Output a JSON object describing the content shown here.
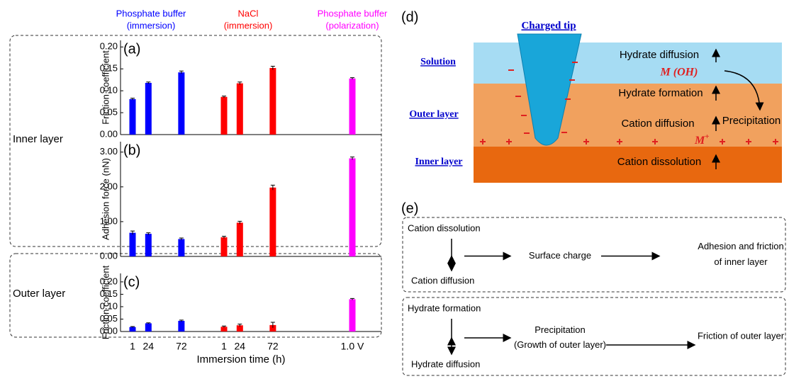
{
  "x_groups": [
    {
      "name": "Phosphate buffer",
      "condition": "(immersion)",
      "color": "#0000ff",
      "categories": [
        "1",
        "24",
        "72"
      ]
    },
    {
      "name": "NaCl",
      "condition": "(immersion)",
      "color": "#ff0000",
      "categories": [
        "1",
        "24",
        "72"
      ]
    },
    {
      "name": "Phosphate buffer",
      "condition": "(polarization)",
      "color": "#ff00ff",
      "categories": [
        "1.0 V"
      ]
    }
  ],
  "xlabel": "Immersion time (h)",
  "layer_labels": [
    "Inner layer",
    "Outer layer"
  ],
  "chart_data": [
    {
      "type": "bar",
      "label": "(a)",
      "ylabel": "Friction coefficient",
      "ylim": [
        0,
        0.215
      ],
      "yticks": [
        {
          "value": 0,
          "label": "0.00"
        },
        0.05,
        {
          "value": 0.1,
          "label": "0.10"
        },
        0.15,
        {
          "value": 0.2,
          "label": "0.20"
        }
      ],
      "series": [
        {
          "values": [
            0.081,
            0.118,
            0.142
          ],
          "errors": [
            0.002,
            0.002,
            0.003
          ]
        },
        {
          "values": [
            0.086,
            0.117,
            0.152
          ],
          "errors": [
            0.002,
            0.003,
            0.004
          ]
        },
        {
          "values": [
            0.128
          ],
          "errors": [
            0.002
          ]
        }
      ]
    },
    {
      "type": "bar",
      "label": "(b)",
      "ylabel": "Adhesion force (nN)",
      "ylim": [
        0,
        3.3
      ],
      "yticks": [
        {
          "value": 0,
          "label": "0.00"
        },
        {
          "value": 1,
          "label": "1.00"
        },
        {
          "value": 2,
          "label": "2.00"
        },
        {
          "value": 3,
          "label": "3.00"
        }
      ],
      "series": [
        {
          "values": [
            0.68,
            0.65,
            0.5
          ],
          "errors": [
            0.05,
            0.03,
            0.03
          ]
        },
        {
          "values": [
            0.55,
            0.97,
            1.98
          ],
          "errors": [
            0.03,
            0.04,
            0.07
          ]
        },
        {
          "values": [
            2.82
          ],
          "errors": [
            0.04
          ]
        }
      ]
    },
    {
      "type": "bar",
      "label": "(c)",
      "ylabel": "Friction coefficient",
      "ylim": [
        0,
        0.234
      ],
      "yticks": [
        {
          "value": 0,
          "label": "0.00"
        },
        0.05,
        {
          "value": 0.1,
          "label": "0.10"
        },
        0.15,
        {
          "value": 0.2,
          "label": "0.20"
        }
      ],
      "series": [
        {
          "values": [
            0.018,
            0.033,
            0.043
          ],
          "errors": [
            0.002,
            0.002,
            0.003
          ]
        },
        {
          "values": [
            0.019,
            0.025,
            0.026
          ],
          "errors": [
            0.003,
            0.005,
            0.011
          ]
        },
        {
          "values": [
            0.13
          ],
          "errors": [
            0.003
          ]
        }
      ]
    }
  ],
  "diagram_d": {
    "label": "(d)",
    "tip": "Charged tip",
    "layers": [
      "Solution",
      "Outer layer",
      "Inner layer"
    ],
    "processes": [
      "Hydrate diffusion",
      "Hydrate formation",
      "Cation diffusion",
      "Cation dissolution"
    ],
    "species": "M (OH)",
    "ion": "M",
    "ion_charge": "+",
    "precipitation": "Precipitation"
  },
  "diagram_e": {
    "label": "(e)",
    "boxes": [
      {
        "top": "Cation dissolution",
        "bottom": "Cation diffusion",
        "middle": [
          "Surface charge"
        ],
        "result": [
          "Adhesion and friction",
          "of inner layer"
        ]
      },
      {
        "top": "Hydrate formation",
        "bottom": "Hydrate diffusion",
        "middle": [
          "Precipitation",
          "(Growth of outer layer)"
        ],
        "result": [
          "Friction of outer layer"
        ]
      }
    ]
  }
}
